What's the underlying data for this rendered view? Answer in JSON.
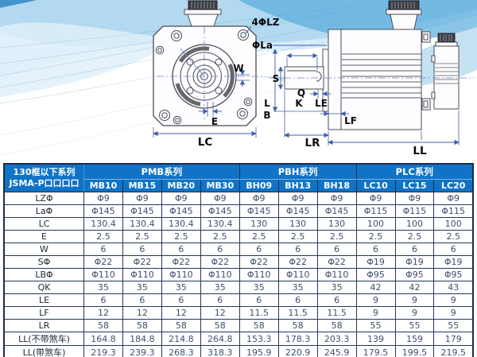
{
  "drawing": {
    "front_view_labels": {
      "lz": "4ΦLZ",
      "la": "ΦLa",
      "w": "W",
      "e": "E",
      "lc": "LC"
    },
    "side_view_labels": {
      "s": "S",
      "q": "Q",
      "k": "K",
      "le": "LE",
      "l": "L",
      "b": "B",
      "lf": "LF",
      "lr": "LR",
      "ll": "LL"
    }
  },
  "table": {
    "corner_title_line1": "130框以下系列",
    "corner_title_line2": "JSMA-P口口口口",
    "series": [
      {
        "name": "PMB系列",
        "models": [
          "MB10",
          "MB15",
          "MB20",
          "MB30"
        ]
      },
      {
        "name": "PBH系列",
        "models": [
          "BH09",
          "BH13",
          "BH18"
        ]
      },
      {
        "name": "PLC系列",
        "models": [
          "LC10",
          "LC15",
          "LC20"
        ]
      }
    ],
    "rows": [
      {
        "label": "LZΦ",
        "values": [
          "Φ9",
          "Φ9",
          "Φ9",
          "Φ9",
          "Φ9",
          "Φ9",
          "Φ9",
          "Φ9",
          "Φ9",
          "Φ9"
        ]
      },
      {
        "label": "LaΦ",
        "values": [
          "Φ145",
          "Φ145",
          "Φ145",
          "Φ145",
          "Φ145",
          "Φ145",
          "Φ145",
          "Φ115",
          "Φ115",
          "Φ115"
        ]
      },
      {
        "label": "LC",
        "values": [
          "130.4",
          "130.4",
          "130.4",
          "130.4",
          "130",
          "130",
          "130",
          "100",
          "100",
          "100"
        ]
      },
      {
        "label": "E",
        "values": [
          "2.5",
          "2.5",
          "2.5",
          "2.5",
          "2.5",
          "2.5",
          "2.5",
          "2.5",
          "2.5",
          "2.5"
        ]
      },
      {
        "label": "W",
        "values": [
          "6",
          "6",
          "6",
          "6",
          "6",
          "6",
          "6",
          "6",
          "6",
          "6"
        ]
      },
      {
        "label": "SΦ",
        "values": [
          "Φ22",
          "Φ22",
          "Φ22",
          "Φ22",
          "Φ22",
          "Φ22",
          "Φ22",
          "Φ19",
          "Φ19",
          "Φ19"
        ]
      },
      {
        "label": "LBΦ",
        "values": [
          "Φ110",
          "Φ110",
          "Φ110",
          "Φ110",
          "Φ110",
          "Φ110",
          "Φ110",
          "Φ95",
          "Φ95",
          "Φ95"
        ]
      },
      {
        "label": "QK",
        "values": [
          "35",
          "35",
          "35",
          "35",
          "35",
          "35",
          "35",
          "42",
          "42",
          "43"
        ]
      },
      {
        "label": "LE",
        "values": [
          "6",
          "6",
          "6",
          "6",
          "6",
          "6",
          "6",
          "9",
          "9",
          "9"
        ]
      },
      {
        "label": "LF",
        "values": [
          "12",
          "12",
          "12",
          "12",
          "11.5",
          "11.5",
          "11.5",
          "9",
          "9",
          "9"
        ]
      },
      {
        "label": "LR",
        "values": [
          "58",
          "58",
          "58",
          "58",
          "58",
          "58",
          "58",
          "55",
          "55",
          "55"
        ]
      },
      {
        "label": "LL(不带煞车)",
        "values": [
          "164.8",
          "184.8",
          "214.8",
          "264.8",
          "153.3",
          "178.3",
          "203.3",
          "139",
          "159",
          "179"
        ]
      },
      {
        "label": "LL(带煞车)",
        "values": [
          "219.3",
          "239.3",
          "268.3",
          "318.3",
          "195.9",
          "220.9",
          "245.9",
          "179.5",
          "199.5",
          "219.5"
        ]
      }
    ],
    "colors": {
      "header_bg": "#1173c6",
      "border": "#1c2b4d",
      "value_text": "#3f4f6d",
      "label_text": "#1d2736"
    }
  }
}
